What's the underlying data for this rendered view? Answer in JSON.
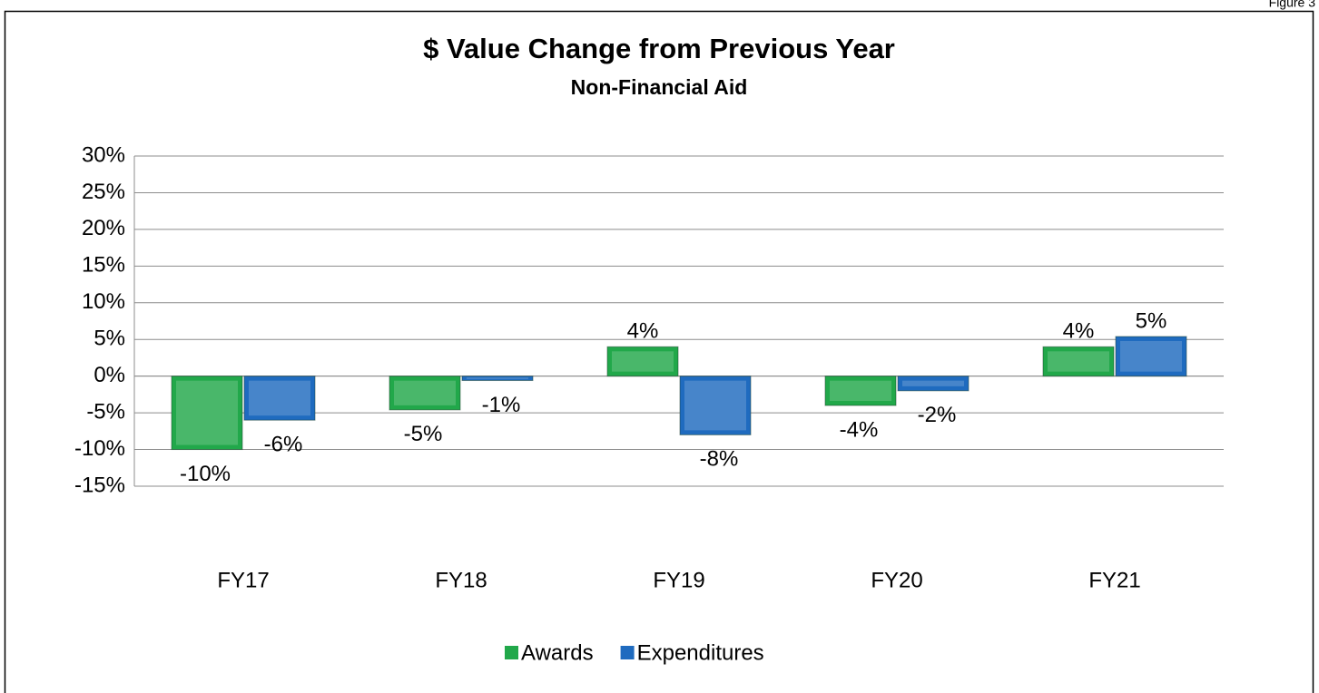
{
  "chart_data": {
    "type": "bar",
    "figure_label": "Figure 3",
    "title": "$ Value Change from Previous Year",
    "subtitle": "Non-Financial Aid",
    "categories": [
      "FY17",
      "FY18",
      "FY19",
      "FY20",
      "FY21"
    ],
    "series": [
      {
        "name": "Awards",
        "color": "#21a84a",
        "values": [
          -10,
          -4.6,
          4,
          -4,
          4
        ],
        "value_labels": [
          "-10%",
          "-5%",
          "4%",
          "-4%",
          "4%"
        ]
      },
      {
        "name": "Expenditures",
        "color": "#1f6bbf",
        "values": [
          -6,
          -0.6,
          -8,
          -2,
          5.4
        ],
        "value_labels": [
          "-6%",
          "-1%",
          "-8%",
          "-2%",
          "5%"
        ]
      }
    ],
    "ylim": [
      -15,
      30
    ],
    "yticks": [
      {
        "value": -15,
        "label": "-15%"
      },
      {
        "value": -10,
        "label": "-10%"
      },
      {
        "value": -5,
        "label": "-5%"
      },
      {
        "value": 0,
        "label": "0%"
      },
      {
        "value": 5,
        "label": "5%"
      },
      {
        "value": 10,
        "label": "10%"
      },
      {
        "value": 15,
        "label": "15%"
      },
      {
        "value": 20,
        "label": "20%"
      },
      {
        "value": 25,
        "label": "25%"
      },
      {
        "value": 30,
        "label": "30%"
      }
    ],
    "grid": true,
    "legend": "bottom"
  }
}
